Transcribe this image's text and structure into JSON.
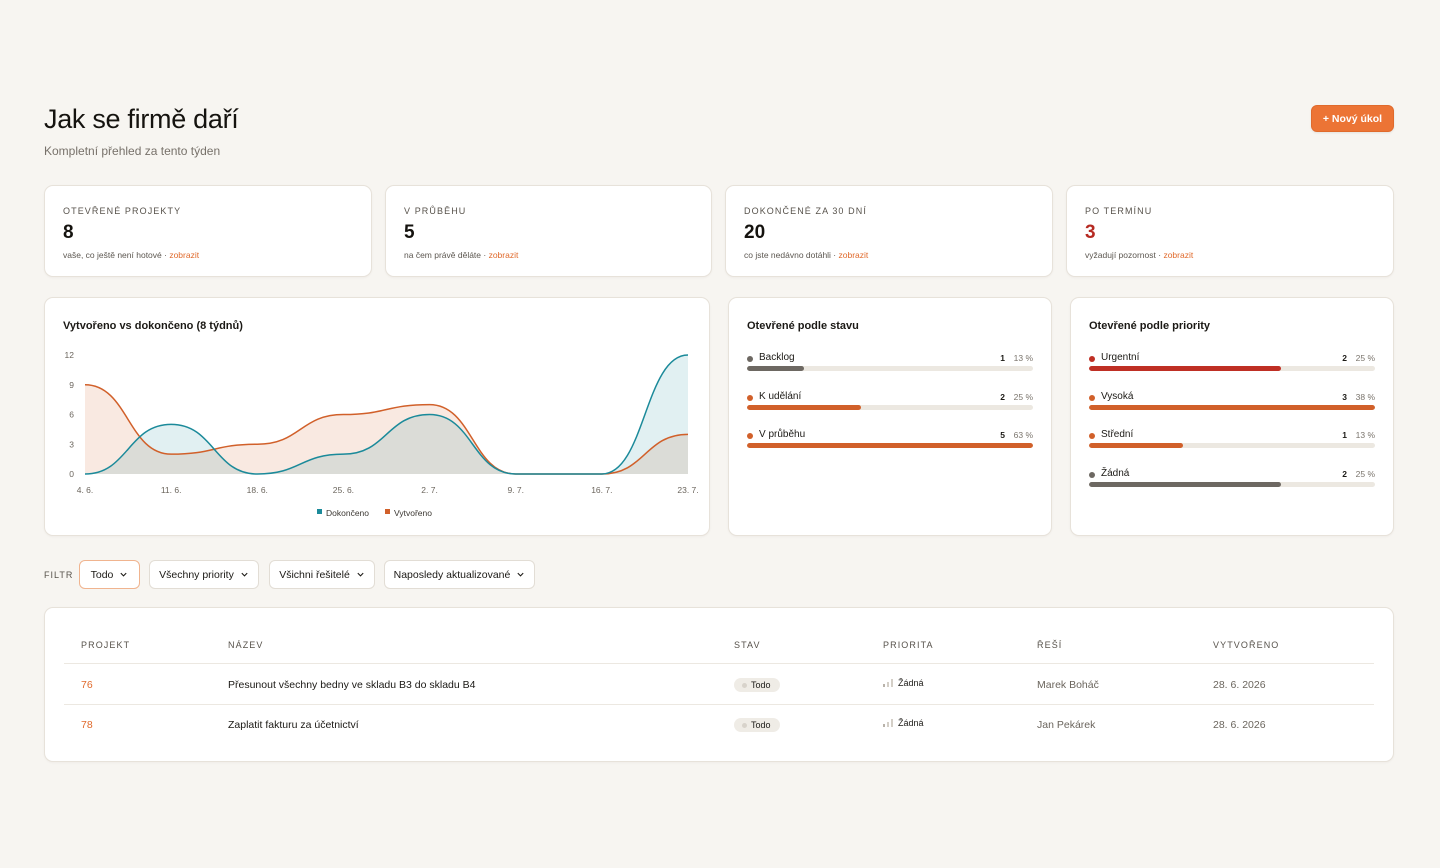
{
  "header": {
    "title": "Jak se firmě daří",
    "subtitle": "Kompletní přehled za tento týden",
    "new_task_label": "+ Nový úkol"
  },
  "stats": [
    {
      "label": "OTEVŘENÉ PROJEKTY",
      "value": "8",
      "sub": "vaše, co ještě není hotové · ",
      "link": "zobrazit"
    },
    {
      "label": "V PRŮBĚHU",
      "value": "5",
      "sub": "na čem právě děláte · ",
      "link": "zobrazit"
    },
    {
      "label": "DOKONČENÉ ZA 30 DNÍ",
      "value": "20",
      "sub": "co jste nedávno dotáhli · ",
      "link": "zobrazit"
    },
    {
      "label": "PO TERMÍNU",
      "value": "3",
      "sub": "vyžadují pozornost · ",
      "link": "zobrazit"
    }
  ],
  "chart_card_title": "Vytvořeno vs dokončeno (8 týdnů)",
  "chart_data": {
    "type": "area",
    "title": "Vytvořeno vs dokončeno (8 týdnů)",
    "categories": [
      "4. 6.",
      "11. 6.",
      "18. 6.",
      "25. 6.",
      "2. 7.",
      "9. 7.",
      "16. 7.",
      "23. 7."
    ],
    "yticks": [
      0,
      3,
      6,
      9,
      12
    ],
    "ylim": [
      0,
      12
    ],
    "series": [
      {
        "name": "Dokončeno",
        "color": "#1b8a9a",
        "values": [
          0,
          5,
          0,
          2,
          6,
          0,
          0,
          12
        ]
      },
      {
        "name": "Vytvořeno",
        "color": "#d1602a",
        "values": [
          9,
          2,
          3,
          6,
          7,
          0,
          0,
          4
        ]
      }
    ],
    "legend": "bottom-center",
    "grid": false
  },
  "status_card": {
    "title": "Otevřené podle stavu",
    "rows": [
      {
        "label": "Backlog",
        "count": "1",
        "pct": "13 %",
        "fraction": 0.2,
        "color": "#6d6862"
      },
      {
        "label": "K udělání",
        "count": "2",
        "pct": "25 %",
        "fraction": 0.4,
        "color": "#d1602a"
      },
      {
        "label": "V průběhu",
        "count": "5",
        "pct": "63 %",
        "fraction": 1.0,
        "color": "#d1602a"
      }
    ]
  },
  "priority_card": {
    "title": "Otevřené podle priority",
    "rows": [
      {
        "label": "Urgentní",
        "count": "2",
        "pct": "25 %",
        "fraction": 0.67,
        "color": "#bf2f24"
      },
      {
        "label": "Vysoká",
        "count": "3",
        "pct": "38 %",
        "fraction": 1.0,
        "color": "#d1602a"
      },
      {
        "label": "Střední",
        "count": "1",
        "pct": "13 %",
        "fraction": 0.33,
        "color": "#d1602a"
      },
      {
        "label": "Žádná",
        "count": "2",
        "pct": "25 %",
        "fraction": 0.67,
        "color": "#6d6862"
      }
    ]
  },
  "filters": {
    "label": "FILTR",
    "items": [
      "Todo",
      "Všechny priority",
      "Všichni řešitelé",
      "Naposledy aktualizované"
    ]
  },
  "table": {
    "headers": [
      "PROJEKT",
      "NÁZEV",
      "STAV",
      "PRIORITA",
      "ŘEŠÍ",
      "VYTVOŘENO"
    ],
    "rows": [
      {
        "project": "76",
        "name": "Přesunout všechny bedny ve skladu B3 do skladu B4",
        "status": "Todo",
        "priority": "Žádná",
        "assignee": "Marek Boháč",
        "created": "28. 6. 2026"
      },
      {
        "project": "78",
        "name": "Zaplatit fakturu za účetnictví",
        "status": "Todo",
        "priority": "Žádná",
        "assignee": "Jan Pekárek",
        "created": "28. 6. 2026"
      }
    ]
  }
}
